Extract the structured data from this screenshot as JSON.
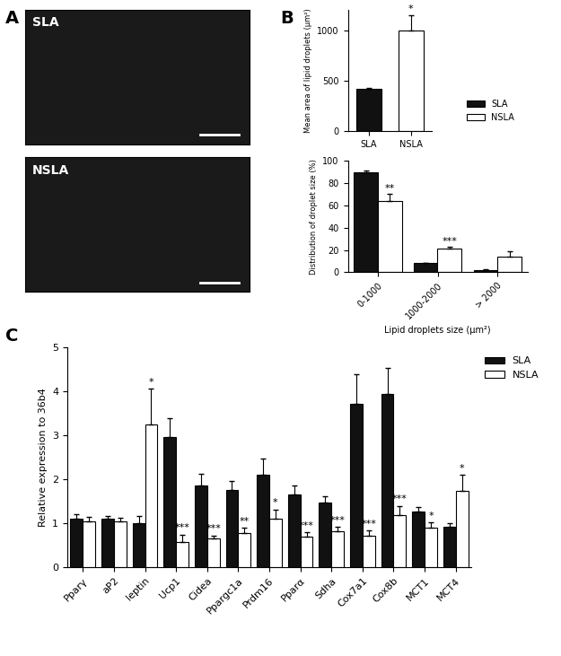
{
  "panel_labels": [
    "A",
    "B",
    "C"
  ],
  "images": [
    {
      "label": "SLA"
    },
    {
      "label": "NSLA"
    }
  ],
  "chart_data": [
    {
      "type": "bar",
      "ylabel": "Mean area of lipid droplets (µm²)",
      "categories": [
        "SLA",
        "NSLA"
      ],
      "values": [
        420,
        1000
      ],
      "errors": [
        5,
        150
      ],
      "colors": [
        "#111111",
        "#ffffff"
      ],
      "significance": [
        null,
        "*"
      ],
      "ylim": [
        0,
        1200
      ],
      "yticks": [
        0,
        500,
        1000
      ]
    },
    {
      "type": "bar",
      "ylabel": "Distribution of droplet size (%)",
      "xlabel": "Lipid droplets size (µm²)",
      "categories": [
        "0-1000",
        "1000-2000",
        "> 2000"
      ],
      "series": [
        {
          "name": "SLA",
          "color": "#111111",
          "values": [
            90,
            8,
            2
          ],
          "errors": [
            1,
            0.5,
            0.5
          ],
          "significance": [
            null,
            null,
            null
          ]
        },
        {
          "name": "NSLA",
          "color": "#ffffff",
          "values": [
            64,
            21,
            14
          ],
          "errors": [
            6,
            2,
            5
          ],
          "significance": [
            "**",
            "***",
            null
          ]
        }
      ],
      "ylim": [
        0,
        100
      ],
      "yticks": [
        0,
        20,
        40,
        60,
        80,
        100
      ],
      "legend": "right"
    },
    {
      "type": "bar",
      "ylabel": "Relative expression to 36b4",
      "categories": [
        "Pparγ",
        "aP2",
        "leptin",
        "Ucp1",
        "Cidea",
        "Ppargc1a",
        "Prdm16",
        "Pparα",
        "Sdha",
        "Cox7a1",
        "Cox8b",
        "MCT1",
        "MCT4"
      ],
      "series": [
        {
          "name": "SLA",
          "color": "#111111",
          "values": [
            1.1,
            1.1,
            1.0,
            2.97,
            1.87,
            1.77,
            2.1,
            1.66,
            1.48,
            3.72,
            3.95,
            1.27,
            0.93
          ],
          "errors": [
            0.12,
            0.08,
            0.18,
            0.42,
            0.27,
            0.2,
            0.37,
            0.21,
            0.13,
            0.68,
            0.58,
            0.1,
            0.08
          ],
          "significance": [
            null,
            null,
            null,
            null,
            null,
            null,
            null,
            null,
            null,
            null,
            null,
            null,
            null
          ]
        },
        {
          "name": "NSLA",
          "color": "#ffffff",
          "values": [
            1.05,
            1.05,
            3.25,
            0.57,
            0.65,
            0.78,
            1.1,
            0.7,
            0.82,
            0.72,
            1.2,
            0.9,
            1.75
          ],
          "errors": [
            0.1,
            0.08,
            0.82,
            0.18,
            0.08,
            0.12,
            0.22,
            0.1,
            0.1,
            0.12,
            0.2,
            0.12,
            0.35
          ],
          "significance": [
            null,
            null,
            "*",
            "***",
            "***",
            "**",
            "*",
            "***",
            "***",
            "***",
            "***",
            "*",
            "*"
          ]
        }
      ],
      "ylim": [
        0,
        5
      ],
      "yticks": [
        0,
        1,
        2,
        3,
        4,
        5
      ],
      "legend": "right"
    }
  ]
}
